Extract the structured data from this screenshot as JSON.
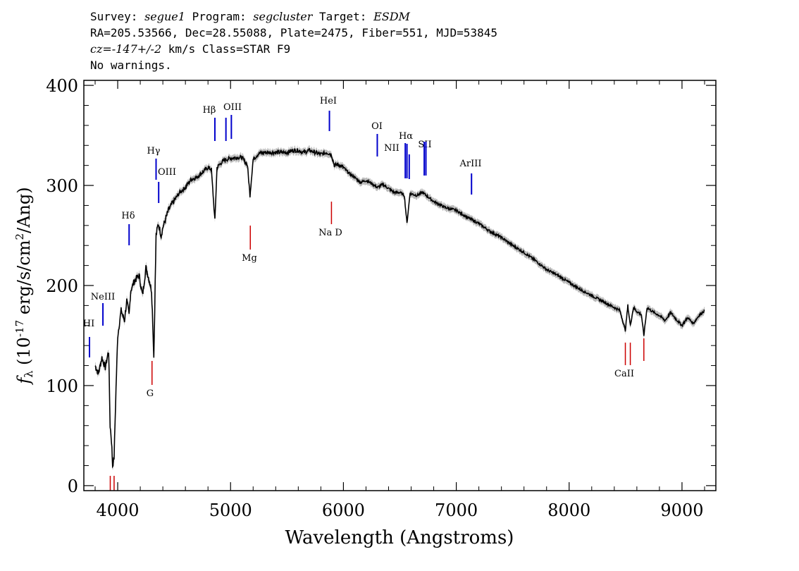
{
  "header": {
    "survey_label": "Survey:",
    "survey": "segue1",
    "program_label": "Program:",
    "program": "segcluster",
    "target_label": "Target:",
    "target": "ESDM",
    "line2": "RA=205.53566, Dec=28.55088, Plate=2475, Fiber=551, MJD=53845",
    "cz": "cz=",
    "cz_value": "-147+/-2",
    "cz_units": " km/s Class=STAR F9",
    "line4": "No warnings."
  },
  "chart_data": {
    "type": "line",
    "xlabel": "Wavelength (Angstroms)",
    "ylabel_parts": [
      "f",
      "λ",
      " (10",
      "-17",
      " erg/s/cm",
      "2",
      "/Ang)"
    ],
    "xlim": [
      3700,
      9300
    ],
    "ylim": [
      -5,
      405
    ],
    "xticks": [
      4000,
      5000,
      6000,
      7000,
      8000,
      9000
    ],
    "yticks": [
      0,
      100,
      200,
      300,
      400
    ],
    "grid": false,
    "series": [
      {
        "color": "#000000",
        "x": [
          3800,
          3830,
          3860,
          3890,
          3920,
          3933,
          3945,
          3955,
          3968,
          3985,
          4000,
          4030,
          4060,
          4080,
          4101,
          4115,
          4150,
          4190,
          4220,
          4250,
          4280,
          4300,
          4310,
          4320,
          4340,
          4360,
          4385,
          4400,
          4450,
          4500,
          4550,
          4600,
          4650,
          4700,
          4750,
          4800,
          4830,
          4861,
          4880,
          4920,
          4960,
          5000,
          5050,
          5100,
          5150,
          5172,
          5200,
          5250,
          5300,
          5350,
          5400,
          5450,
          5500,
          5550,
          5600,
          5650,
          5700,
          5750,
          5800,
          5850,
          5893,
          5920,
          5950,
          6000,
          6050,
          6100,
          6150,
          6200,
          6250,
          6300,
          6350,
          6400,
          6450,
          6500,
          6540,
          6563,
          6590,
          6650,
          6700,
          6800,
          6900,
          7000,
          7100,
          7200,
          7300,
          7400,
          7500,
          7600,
          7700,
          7800,
          7900,
          8000,
          8100,
          8200,
          8300,
          8400,
          8450,
          8498,
          8520,
          8542,
          8570,
          8600,
          8640,
          8662,
          8690,
          8750,
          8800,
          8850,
          8900,
          8950,
          9000,
          9050,
          9100,
          9150,
          9200
        ],
        "y": [
          120,
          112,
          128,
          118,
          135,
          60,
          45,
          20,
          28,
          98,
          150,
          175,
          165,
          185,
          170,
          195,
          205,
          210,
          190,
          218,
          205,
          195,
          165,
          128,
          250,
          262,
          250,
          258,
          275,
          285,
          293,
          298,
          306,
          308,
          313,
          318,
          316,
          265,
          318,
          323,
          326,
          327,
          328,
          328,
          320,
          290,
          326,
          332,
          333,
          333,
          333,
          333,
          333,
          335,
          335,
          333,
          335,
          333,
          331,
          333,
          331,
          320,
          321,
          318,
          312,
          308,
          303,
          305,
          302,
          298,
          301,
          297,
          293,
          293,
          290,
          262,
          292,
          290,
          293,
          284,
          278,
          275,
          268,
          262,
          254,
          248,
          240,
          233,
          225,
          216,
          210,
          203,
          196,
          190,
          184,
          178,
          175,
          155,
          180,
          160,
          178,
          174,
          171,
          150,
          178,
          173,
          170,
          165,
          173,
          166,
          160,
          168,
          162,
          170,
          175
        ]
      }
    ],
    "emission_lines": [
      {
        "label": "HI",
        "wave": 3750
      },
      {
        "label": "NeIII",
        "wave": 3869
      },
      {
        "label": "Hδ",
        "wave": 4101
      },
      {
        "label": "Hγ",
        "wave": 4340
      },
      {
        "label": "OIII",
        "wave": 4363
      },
      {
        "label": "Hβ",
        "wave": 4861
      },
      {
        "label": "OIII",
        "wave": 4959
      },
      {
        "label": "OIII",
        "wave": 5007
      },
      {
        "label": "HeI",
        "wave": 5876
      },
      {
        "label": "OI",
        "wave": 6300
      },
      {
        "label": "NII",
        "wave": 6548
      },
      {
        "label": "Hα",
        "wave": 6563
      },
      {
        "label": "NII",
        "wave": 6583
      },
      {
        "label": "SII",
        "wave": 6716
      },
      {
        "label": "SII",
        "wave": 6731
      },
      {
        "label": "ArIII",
        "wave": 7135
      }
    ],
    "absorption_lines": [
      {
        "label": "",
        "wave": 3934
      },
      {
        "label": "",
        "wave": 3968
      },
      {
        "label": "G",
        "wave": 4304
      },
      {
        "label": "Mg",
        "wave": 5175
      },
      {
        "label": "Na D",
        "wave": 5894
      },
      {
        "label": "CaII",
        "wave": 8498
      },
      {
        "label": "",
        "wave": 8542
      },
      {
        "label": "",
        "wave": 8662
      }
    ],
    "colors": {
      "emission": "#0000cc",
      "absorption": "#cc0000",
      "spectrum": "#000000",
      "error_band": "#bbbbbb"
    }
  }
}
